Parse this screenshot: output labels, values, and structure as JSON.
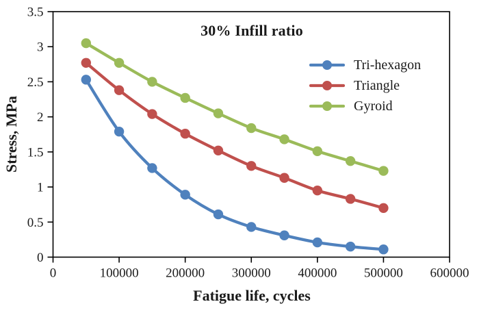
{
  "figure": {
    "background": "#FFFFFF",
    "text_color": "#1A1A1A",
    "axis_color": "#000000"
  },
  "chart_data": {
    "type": "line",
    "title": "30% Infill ratio",
    "xlabel": "Fatigue life, cycles",
    "ylabel": "Stress, MPa",
    "x": [
      50000,
      100000,
      150000,
      200000,
      250000,
      300000,
      350000,
      400000,
      450000,
      500000
    ],
    "series": [
      {
        "name": "Tri-hexagon",
        "color": "#4F81BD",
        "values": [
          2.53,
          1.79,
          1.27,
          0.89,
          0.61,
          0.43,
          0.31,
          0.21,
          0.15,
          0.11
        ]
      },
      {
        "name": "Triangle",
        "color": "#C0504D",
        "values": [
          2.77,
          2.38,
          2.04,
          1.76,
          1.52,
          1.3,
          1.13,
          0.95,
          0.83,
          0.7
        ]
      },
      {
        "name": "Gyroid",
        "color": "#9BBB59",
        "values": [
          3.05,
          2.77,
          2.5,
          2.27,
          2.05,
          1.84,
          1.68,
          1.51,
          1.37,
          1.23
        ]
      }
    ],
    "xlim": [
      0,
      600000
    ],
    "ylim": [
      0,
      3.5
    ],
    "x_ticks": [
      0,
      100000,
      200000,
      300000,
      400000,
      500000,
      600000
    ],
    "x_tick_labels": [
      "0",
      "100000",
      "200000",
      "300000",
      "400000",
      "500000",
      "600000"
    ],
    "y_ticks": [
      0,
      0.5,
      1,
      1.5,
      2,
      2.5,
      3,
      3.5
    ],
    "y_tick_labels": [
      "0",
      "0.5",
      "1",
      "1.5",
      "2",
      "2.5",
      "3",
      "3.5"
    ],
    "grid": false,
    "line_smooth": true,
    "marker": "circle",
    "legend": {
      "position": "inside-upper-right",
      "entries": [
        "Tri-hexagon",
        "Triangle",
        "Gyroid"
      ]
    }
  }
}
